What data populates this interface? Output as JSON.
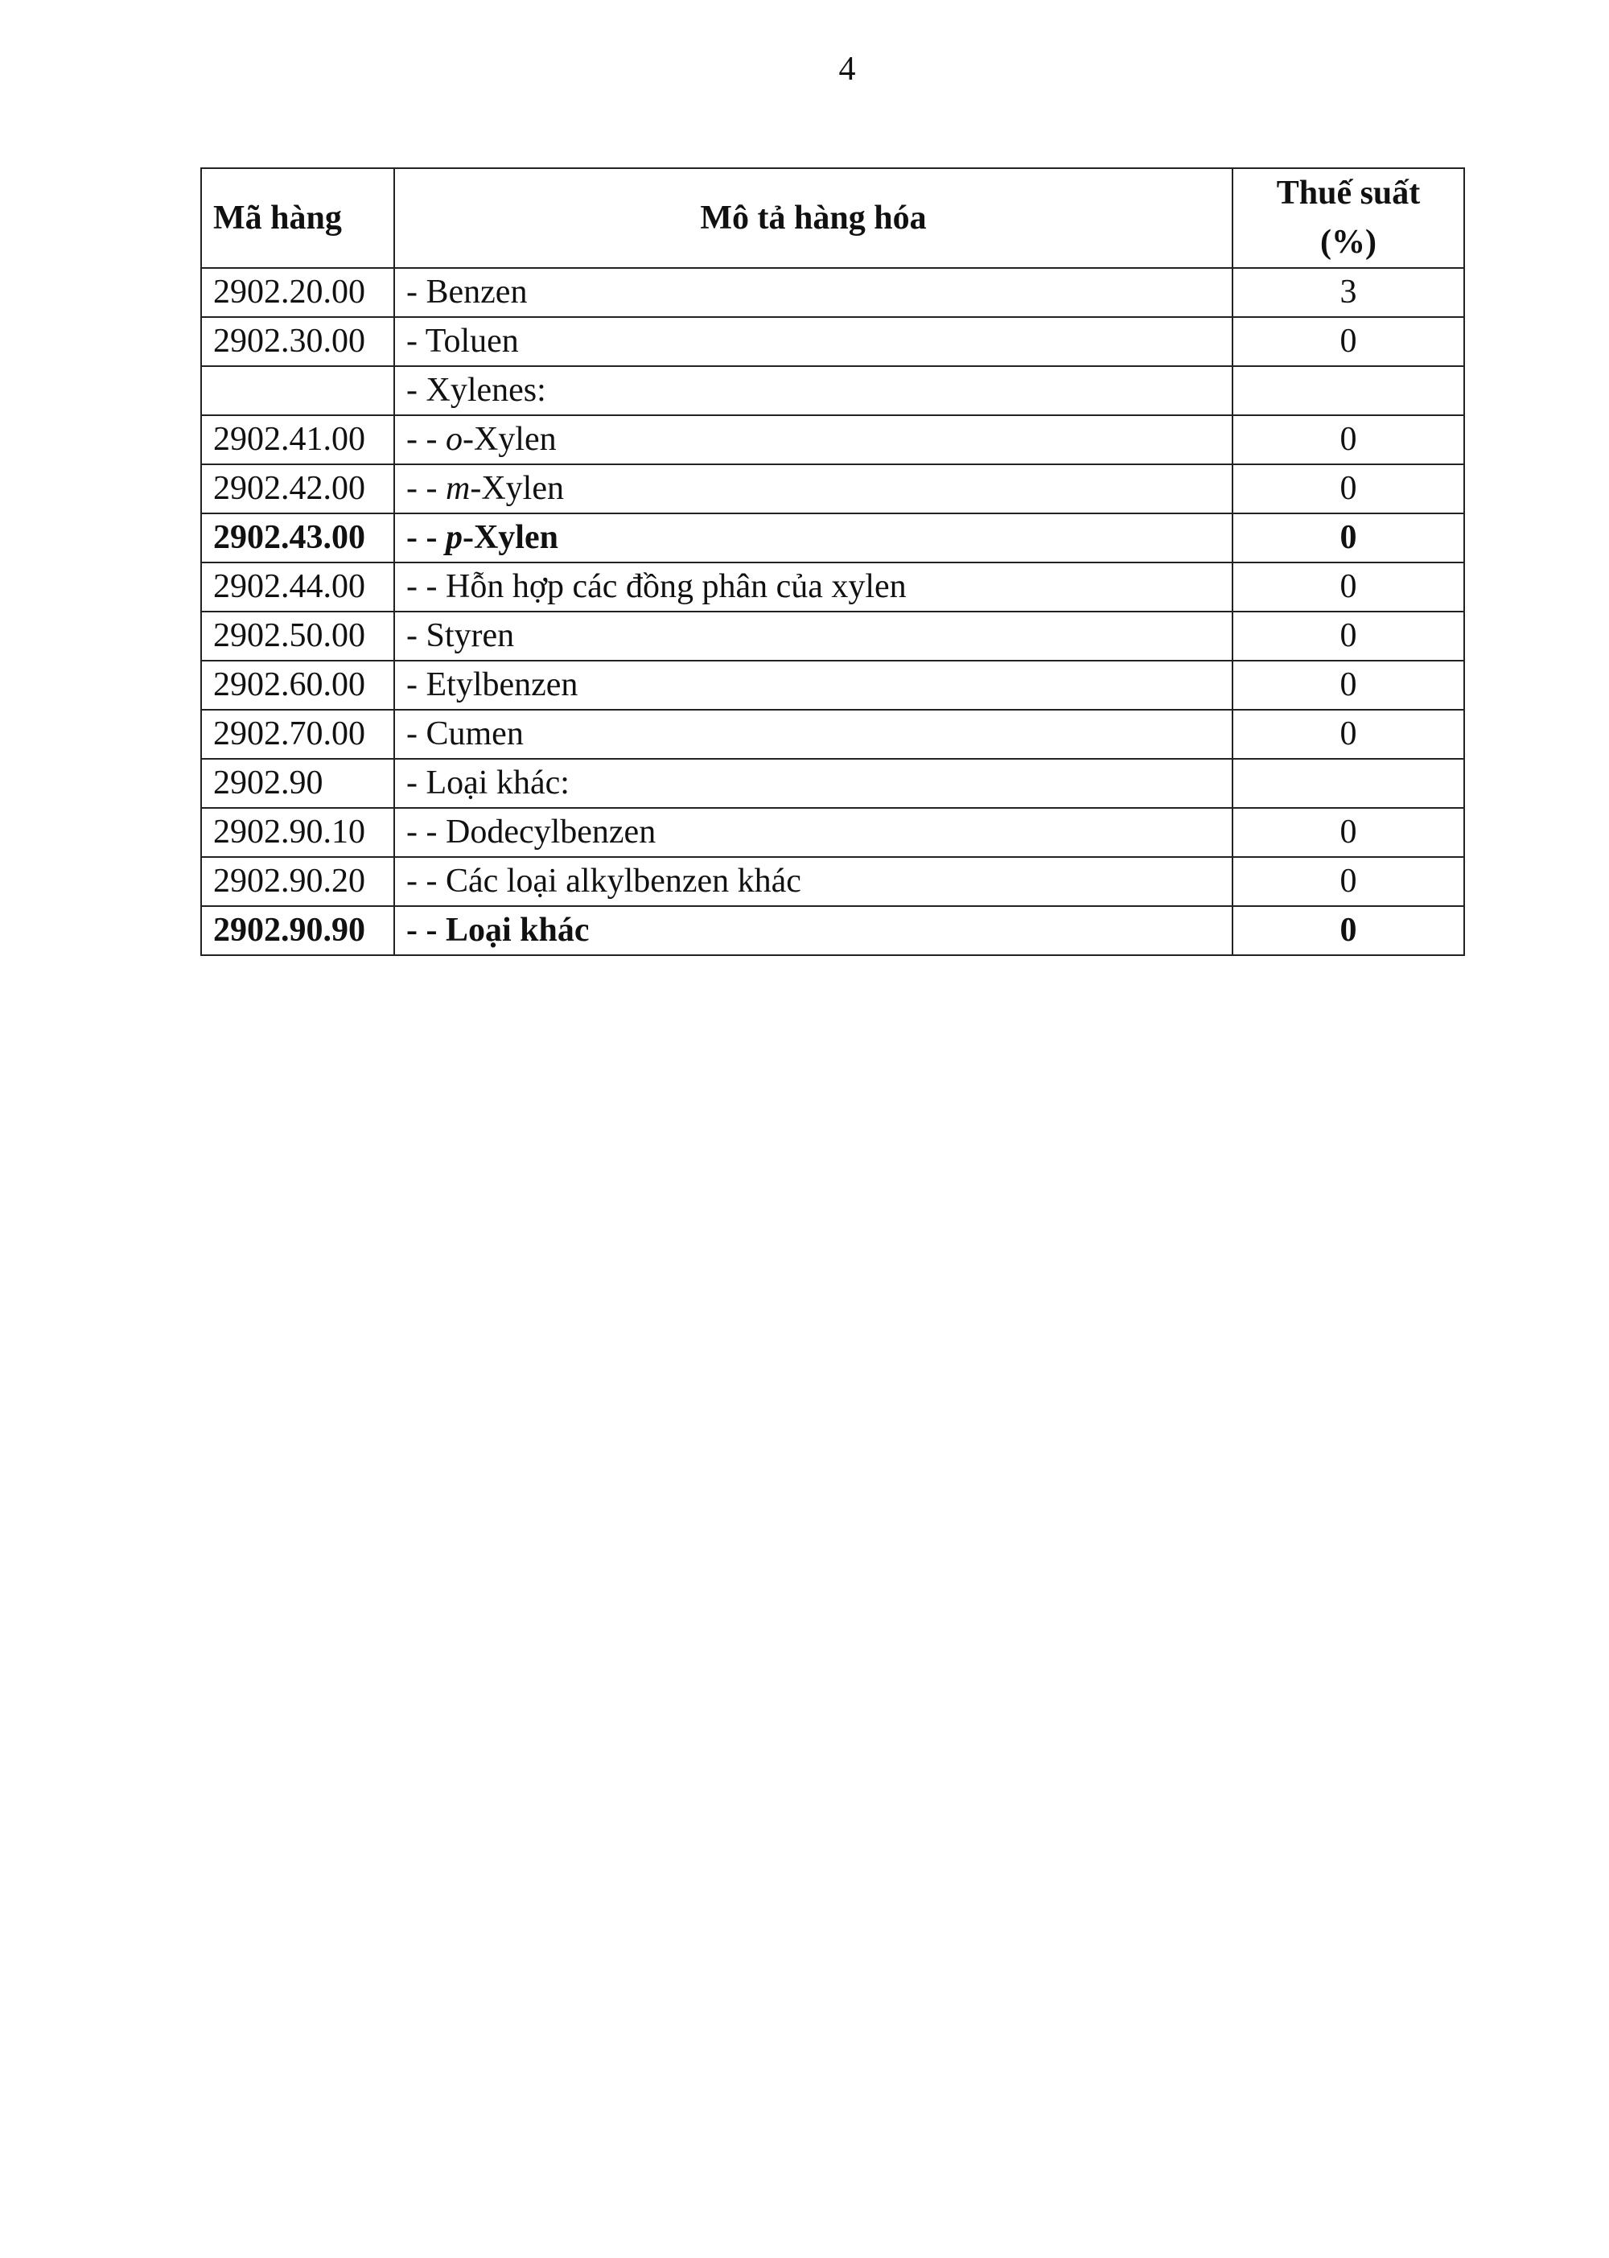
{
  "page_number": "4",
  "table": {
    "headers": [
      "Mã hàng",
      "Mô tả hàng hóa",
      "Thuế suất",
      "(%)"
    ],
    "rows": [
      {
        "code": "2902.20.00",
        "prefix": "- ",
        "em": "",
        "desc": "Benzen",
        "rate": "3",
        "bold": false
      },
      {
        "code": "2902.30.00",
        "prefix": "- ",
        "em": "",
        "desc": "Toluen",
        "rate": "0",
        "bold": false
      },
      {
        "code": "",
        "prefix": "- ",
        "em": "",
        "desc": "Xylenes:",
        "rate": "",
        "bold": false
      },
      {
        "code": "2902.41.00",
        "prefix": "- - ",
        "em": "o",
        "desc": "-Xylen",
        "rate": "0",
        "bold": false
      },
      {
        "code": "2902.42.00",
        "prefix": "- - ",
        "em": "m",
        "desc": "-Xylen",
        "rate": "0",
        "bold": false
      },
      {
        "code": "2902.43.00",
        "prefix": "- - ",
        "em": "p",
        "desc": "-Xylen",
        "rate": "0",
        "bold": true
      },
      {
        "code": "2902.44.00",
        "prefix": "- - ",
        "em": "",
        "desc": "Hỗn hợp các đồng phân của xylen",
        "rate": "0",
        "bold": false
      },
      {
        "code": "2902.50.00",
        "prefix": "- ",
        "em": "",
        "desc": "Styren",
        "rate": "0",
        "bold": false
      },
      {
        "code": "2902.60.00",
        "prefix": "- ",
        "em": "",
        "desc": "Etylbenzen",
        "rate": "0",
        "bold": false
      },
      {
        "code": "2902.70.00",
        "prefix": "- ",
        "em": "",
        "desc": "Cumen",
        "rate": "0",
        "bold": false
      },
      {
        "code": "2902.90",
        "prefix": "- ",
        "em": "",
        "desc": "Loại khác:",
        "rate": "",
        "bold": false
      },
      {
        "code": "2902.90.10",
        "prefix": "- - ",
        "em": "",
        "desc": "Dodecylbenzen",
        "rate": "0",
        "bold": false
      },
      {
        "code": "2902.90.20",
        "prefix": "- - ",
        "em": "",
        "desc": "Các loại alkylbenzen khác",
        "rate": "0",
        "bold": false
      },
      {
        "code": "2902.90.90",
        "prefix": "- - ",
        "em": "",
        "desc": "Loại khác",
        "rate": "0",
        "bold": true
      }
    ]
  }
}
